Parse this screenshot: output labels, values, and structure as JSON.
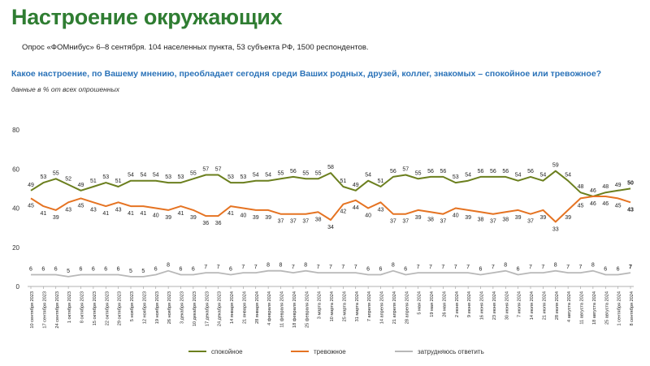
{
  "header": {
    "title": "Настроение окружающих",
    "subtitle": "Опрос «ФОМнибус» 6–8 сентября. 104 населенных пункта, 53 субъекта РФ, 1500 респондентов.",
    "question": "Какое настроение, по Вашему мнению, преобладает сегодня среди Ваших родных, друзей, коллег, знакомых – спокойное или тревожное?",
    "note": "данные в % от всех опрошенных"
  },
  "colors": {
    "calm": "#6b7f1e",
    "anxious": "#e57322",
    "hard": "#b8b8b8",
    "title": "#2f7d32",
    "question": "#2a72b8"
  },
  "chart_data": {
    "type": "line",
    "title": "",
    "xlabel": "",
    "ylabel": "",
    "ylim": [
      0,
      80
    ],
    "yticks": [
      0,
      20,
      40,
      60,
      80
    ],
    "grid": false,
    "legend_position": "bottom",
    "categories": [
      "10 сентября 2023",
      "17 сентября 2023",
      "24 сентября 2023",
      "1 октября 2023",
      "8 октября 2023",
      "15 октября 2023",
      "22 октября 2023",
      "29 октября 2023",
      "5 ноября 2023",
      "12 ноября 2023",
      "19 ноября 2023",
      "26 ноября 2023",
      "3 декабря 2023",
      "10 декабря 2023",
      "17 декабря 2023",
      "24 декабря 2023",
      "14 января 2024",
      "21 января 2024",
      "28 января 2024",
      "4 февраля 2024",
      "11 февраля 2024",
      "18 февраля 2024",
      "25 февраля 2024",
      "3 марта 2024",
      "10 марта 2024",
      "25 марта 2024",
      "31 марта 2024",
      "7 апреля 2024",
      "14 апреля 2024",
      "21 апреля 2024",
      "28 апреля 2024",
      "5 мая 2024",
      "19 мая 2024",
      "26 мая 2024",
      "2 июня 2024",
      "9 июня 2024",
      "16 июня 2024",
      "23 июня 2024",
      "30 июня 2024",
      "7 июля 2024",
      "14 июля 2024",
      "21 июля 2024",
      "28 июля 2024",
      "4 августа 2024",
      "11 августа 2024",
      "18 августа 2024",
      "25 августа 2024",
      "1 сентября 2024",
      "8 сентября 2024"
    ],
    "series": [
      {
        "name": "спокойное",
        "values": [
          49,
          53,
          55,
          52,
          49,
          51,
          53,
          51,
          54,
          54,
          54,
          53,
          53,
          55,
          57,
          57,
          53,
          53,
          54,
          54,
          55,
          56,
          55,
          55,
          58,
          51,
          49,
          54,
          51,
          56,
          57,
          55,
          56,
          56,
          53,
          54,
          56,
          56,
          56,
          54,
          56,
          54,
          59,
          54,
          48,
          46,
          48,
          49,
          50
        ],
        "labels": [
          "49",
          "53",
          "55",
          "52",
          "49",
          "51",
          "53",
          "51",
          "54",
          "54",
          "54",
          "53",
          "53",
          "55",
          "57",
          "57",
          "53",
          "53",
          "54",
          "54",
          "55",
          "56",
          "55",
          "55",
          "58",
          "51",
          "49",
          "54",
          "51",
          "56",
          "57",
          "55",
          "56",
          "56",
          "53",
          "54",
          "56",
          "56",
          "56",
          "54",
          "56",
          "54",
          "59",
          "54",
          "48",
          "46",
          "48",
          "49",
          "50"
        ]
      },
      {
        "name": "тревожное",
        "values": [
          45,
          41,
          39,
          43,
          45,
          43,
          41,
          43,
          41,
          41,
          40,
          39,
          41,
          39,
          36,
          36,
          41,
          40,
          39,
          39,
          37,
          37,
          37,
          38,
          34,
          42,
          44,
          40,
          43,
          37,
          37,
          39,
          38,
          37,
          40,
          39,
          38,
          37,
          38,
          39,
          37,
          39,
          33,
          39,
          45,
          46,
          46,
          45,
          43
        ],
        "labels": [
          "45",
          "41",
          "39",
          "43",
          "45",
          "43",
          "41",
          "43",
          "41",
          "41",
          "40",
          "39",
          "41",
          "39",
          "36",
          "36",
          "41",
          "40",
          "39",
          "39",
          "37",
          "37",
          "37",
          "38",
          "34",
          "42",
          "44",
          "40",
          "43",
          "37",
          "37",
          "39",
          "38",
          "37",
          "40",
          "39",
          "38",
          "37",
          "38",
          "39",
          "37",
          "39",
          "33",
          "39",
          "45",
          "46",
          "46",
          "45",
          "43"
        ]
      },
      {
        "name": "затрудняюсь ответить",
        "values": [
          6,
          6,
          6,
          5,
          6,
          6,
          6,
          6,
          5,
          5,
          6,
          8,
          6,
          6,
          7,
          7,
          6,
          7,
          7,
          8,
          8,
          7,
          8,
          7,
          7,
          7,
          7,
          6,
          6,
          8,
          6,
          7,
          7,
          7,
          7,
          7,
          6,
          7,
          8,
          6,
          7,
          7,
          8,
          7,
          7,
          8,
          6,
          6,
          7
        ],
        "labels": [
          "6",
          "6",
          "6",
          "5",
          "6",
          "6",
          "6",
          "6",
          "5",
          "5",
          "6",
          "8",
          "6",
          "6",
          "7",
          "7",
          "6",
          "7",
          "7",
          "8",
          "8",
          "7",
          "8",
          "7",
          "7",
          "7",
          "7",
          "6",
          "6",
          "8",
          "6",
          "7",
          "7",
          "7",
          "7",
          "7",
          "6",
          "7",
          "8",
          "6",
          "7",
          "7",
          "8",
          "7",
          "7",
          "8",
          "6",
          "6",
          "7"
        ]
      }
    ]
  }
}
